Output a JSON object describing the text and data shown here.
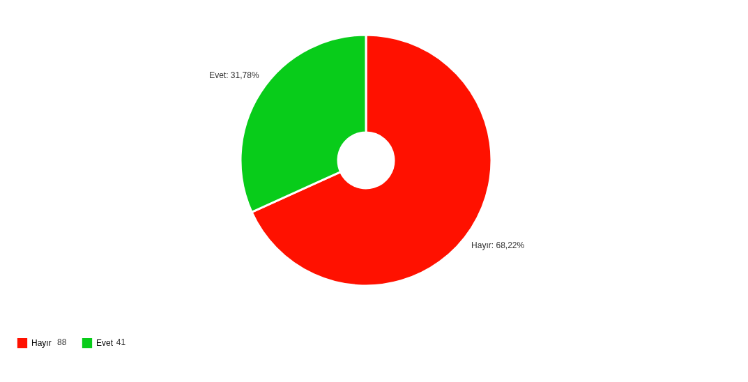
{
  "chart_data": {
    "type": "donut",
    "categories": [
      "Hayır",
      "Evet"
    ],
    "values": [
      68.22,
      31.78
    ],
    "annotations": [
      "88",
      "41"
    ],
    "colors": [
      "#ff1100",
      "#08cc1a"
    ],
    "value_labels": [
      "Hayır: 68,22%",
      "Evet: 31,78%"
    ],
    "legend": "bottom"
  }
}
